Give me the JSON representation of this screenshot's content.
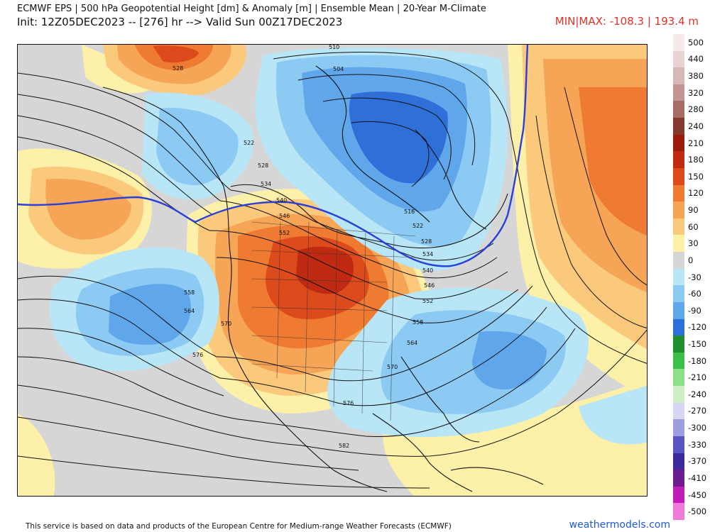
{
  "header": {
    "title": "ECMWF EPS | 500 hPa Geopotential Height [dm] & Anomaly [m] | Ensemble Mean | 20-Year M-Climate",
    "subtitle": "Init: 12Z05DEC2023 -- [276] hr --> Valid Sun 00Z17DEC2023",
    "minmax": "MIN|MAX: -108.3 | 193.4 m"
  },
  "colorbar": {
    "levels": [
      {
        "label": "500",
        "color": "#f4eaea"
      },
      {
        "label": "440",
        "color": "#e8d3d2"
      },
      {
        "label": "380",
        "color": "#d8b8b6"
      },
      {
        "label": "320",
        "color": "#c39592"
      },
      {
        "label": "280",
        "color": "#a86c68"
      },
      {
        "label": "240",
        "color": "#87392f"
      },
      {
        "label": "210",
        "color": "#9b1c0c"
      },
      {
        "label": "180",
        "color": "#c02a12"
      },
      {
        "label": "150",
        "color": "#dd4a1c"
      },
      {
        "label": "120",
        "color": "#ef7a32"
      },
      {
        "label": "90",
        "color": "#f6a455"
      },
      {
        "label": "60",
        "color": "#fbc97c"
      },
      {
        "label": "30",
        "color": "#fdf0a8"
      },
      {
        "label": "0",
        "color": "#d6d6d6"
      },
      {
        "label": "-30",
        "color": "#b8e6f6"
      },
      {
        "label": "-60",
        "color": "#8ccaf3"
      },
      {
        "label": "-90",
        "color": "#5fa7ea"
      },
      {
        "label": "-120",
        "color": "#2f6fd8"
      },
      {
        "label": "-150",
        "color": "#1e8e2e"
      },
      {
        "label": "-180",
        "color": "#3cbf48"
      },
      {
        "label": "-210",
        "color": "#8ee08a"
      },
      {
        "label": "-240",
        "color": "#cfeec8"
      },
      {
        "label": "-270",
        "color": "#d6d6f2"
      },
      {
        "label": "-300",
        "color": "#9d9de0"
      },
      {
        "label": "-330",
        "color": "#5b54c4"
      },
      {
        "label": "-370",
        "color": "#3f2a9c"
      },
      {
        "label": "-410",
        "color": "#6d1c8f"
      },
      {
        "label": "-450",
        "color": "#c21cb6"
      },
      {
        "label": "-500",
        "color": "#f07ad8"
      }
    ]
  },
  "map": {
    "contour_labels": [
      "510",
      "504",
      "528",
      "522",
      "528",
      "534",
      "540",
      "546",
      "552",
      "558",
      "564",
      "570",
      "576",
      "576",
      "582",
      "516",
      "522",
      "528",
      "534",
      "540",
      "546",
      "552",
      "558",
      "564",
      "570"
    ],
    "highlight_contour_color": "#2a3fd8"
  },
  "footer": {
    "text": "This service is based on data and products of the European Centre for Medium-range Weather Forecasts (ECMWF)",
    "brand": "weathermodels.com",
    "brand_color": "#1f5bd6"
  }
}
